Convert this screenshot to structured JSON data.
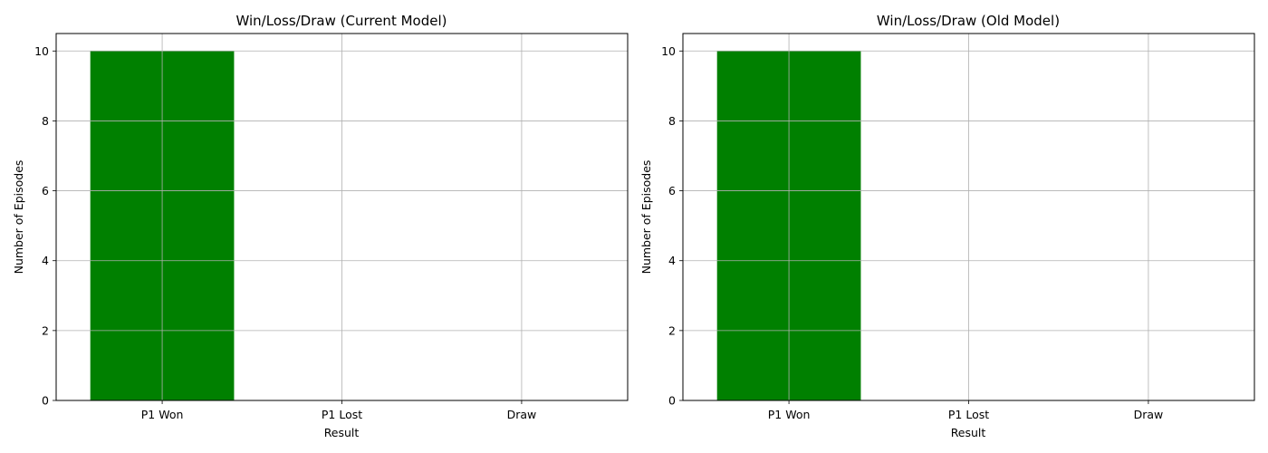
{
  "chart_data": [
    {
      "type": "bar",
      "title": "Win/Loss/Draw (Current Model)",
      "xlabel": "Result",
      "ylabel": "Number of Episodes",
      "categories": [
        "P1 Won",
        "P1 Lost",
        "Draw"
      ],
      "values": [
        10,
        0,
        0
      ],
      "colors": [
        "#008000",
        "#008000",
        "#008000"
      ],
      "ylim": [
        0,
        10.5
      ],
      "yticks": [
        0,
        2,
        4,
        6,
        8,
        10
      ],
      "grid": true
    },
    {
      "type": "bar",
      "title": "Win/Loss/Draw (Old Model)",
      "xlabel": "Result",
      "ylabel": "Number of Episodes",
      "categories": [
        "P1 Won",
        "P1 Lost",
        "Draw"
      ],
      "values": [
        10,
        0,
        0
      ],
      "colors": [
        "#008000",
        "#008000",
        "#008000"
      ],
      "ylim": [
        0,
        10.5
      ],
      "yticks": [
        0,
        2,
        4,
        6,
        8,
        10
      ],
      "grid": true
    }
  ]
}
